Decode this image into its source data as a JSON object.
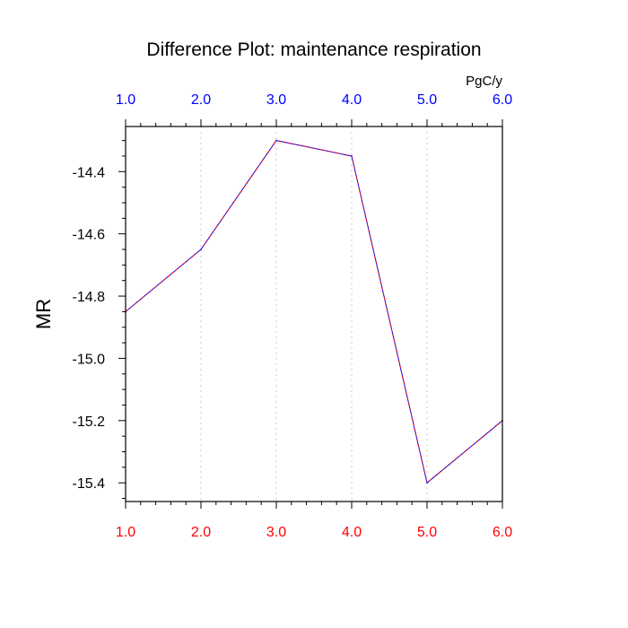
{
  "chart_data": {
    "type": "line",
    "title": "Difference Plot: maintenance respiration",
    "units": "PgC/y",
    "ylabel": "MR",
    "xlabel": "",
    "xlim": [
      1.0,
      6.0
    ],
    "ylim": [
      -15.46,
      -14.255
    ],
    "x_ticks": [
      "1.0",
      "2.0",
      "3.0",
      "4.0",
      "5.0",
      "6.0"
    ],
    "x_tick_values": [
      1,
      2,
      3,
      4,
      5,
      6
    ],
    "y_ticks": [
      "-14.4",
      "-14.6",
      "-14.8",
      "-15.0",
      "-15.2",
      "-15.4"
    ],
    "y_tick_values": [
      -14.4,
      -14.6,
      -14.8,
      -15.0,
      -15.2,
      -15.4
    ],
    "grid": "vertical-dotted",
    "series": [
      {
        "x": [
          1,
          2,
          3,
          4,
          5,
          6
        ],
        "values": [
          -14.85,
          -14.65,
          -14.3,
          -14.35,
          -15.4,
          -15.2
        ],
        "colors": [
          "#0000ff",
          "#ff0000"
        ],
        "style": "dashed"
      }
    ],
    "colors": {
      "top_tick_labels": "#0000ff",
      "bottom_tick_labels": "#ff0000",
      "grid": "#c8c8c8",
      "axes": "#000000"
    }
  }
}
